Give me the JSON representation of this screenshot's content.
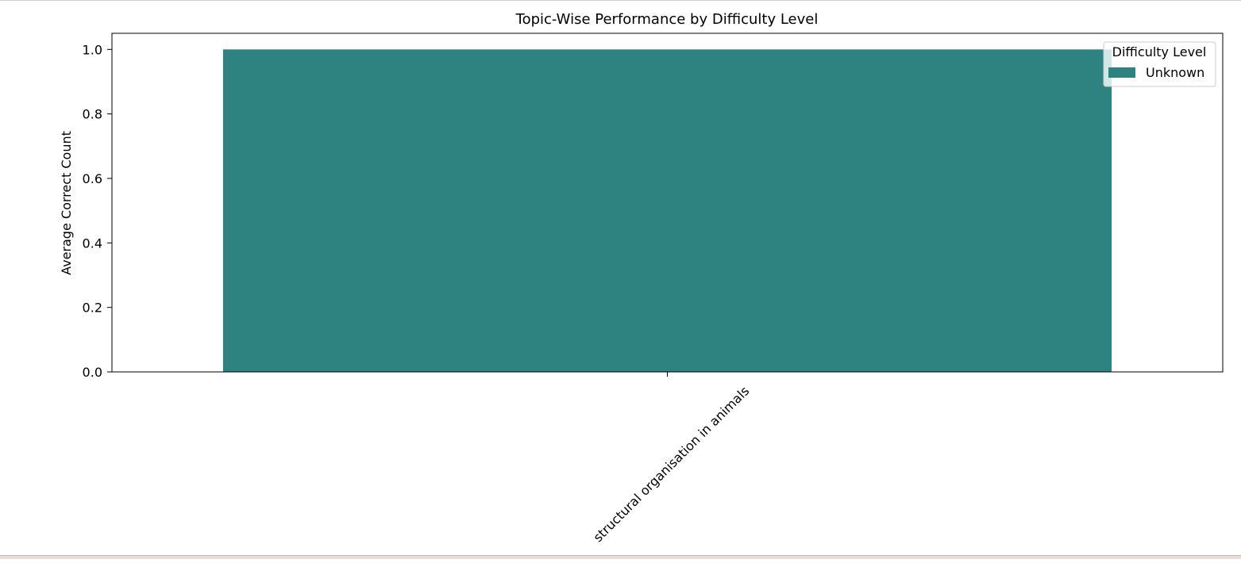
{
  "chart_data": {
    "type": "bar",
    "title": "Topic-Wise Performance by Difficulty Level",
    "xlabel": "",
    "ylabel": "Average Correct Count",
    "categories": [
      "structural organisation in animals"
    ],
    "series": [
      {
        "name": "Unknown",
        "values": [
          1.0
        ],
        "color": "#2e8380"
      }
    ],
    "ylim": [
      0,
      1.05
    ],
    "yticks": [
      0.0,
      0.2,
      0.4,
      0.6,
      0.8,
      1.0
    ],
    "ytick_labels": [
      "0.0",
      "0.2",
      "0.4",
      "0.6",
      "0.8",
      "1.0"
    ],
    "grid": false,
    "legend": {
      "title": "Difficulty Level",
      "placement": "top-right"
    }
  }
}
